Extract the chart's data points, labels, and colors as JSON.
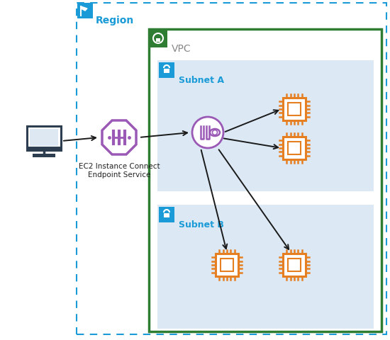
{
  "bg_color": "#ffffff",
  "region_border_color": "#1a9bd7",
  "region_label": "Region",
  "region_label_color": "#1a9bd7",
  "region_icon_color": "#1a9bd7",
  "vpc_border_color": "#2e7d32",
  "vpc_label": "VPC",
  "vpc_label_color": "#888888",
  "vpc_icon_color": "#2e7d32",
  "subnet_bg_color": "#dce9f5",
  "subnet_a_label": "Subnet A",
  "subnet_b_label": "Subnet B",
  "subnet_label_color": "#1a9bd7",
  "subnet_icon_color": "#1a9bd7",
  "endpoint_color": "#9b59b6",
  "ec2_label_line1": "EC2 Instance Connect",
  "ec2_label_line2": "Endpoint Service",
  "ec2_label_color": "#222222",
  "instance_color": "#e67e22",
  "arrow_color": "#1a1a1a",
  "computer_color": "#2c3e50",
  "figsize": [
    5.5,
    4.81
  ],
  "dpi": 100
}
